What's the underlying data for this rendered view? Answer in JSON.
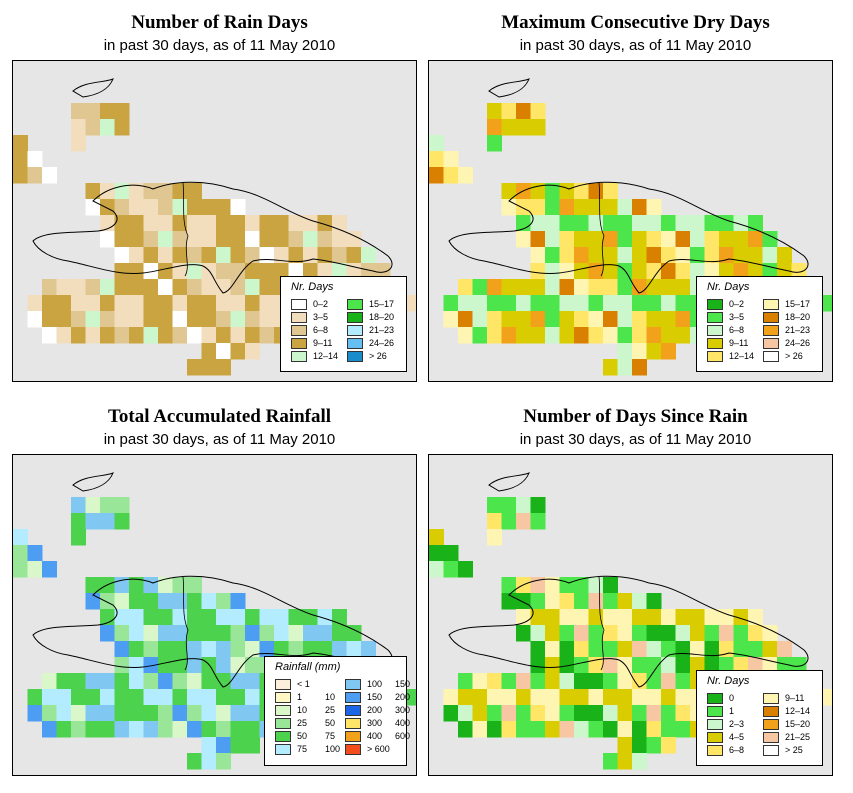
{
  "panels": [
    {
      "title": "Number of Rain Days",
      "subtitle": "in past 30 days, as of  11 May 2010",
      "legend": {
        "title": "Nr. Days",
        "items": [
          {
            "label": "0–2",
            "color": "#ffffff"
          },
          {
            "label": "3–5",
            "color": "#f2ddbc"
          },
          {
            "label": "6–8",
            "color": "#e0c690"
          },
          {
            "label": "9–11",
            "color": "#c9a441"
          },
          {
            "label": "12–14",
            "color": "#ccf7cc"
          },
          {
            "label": "15–17",
            "color": "#4ce64c"
          },
          {
            "label": "18–20",
            "color": "#19b219"
          },
          {
            "label": "21–23",
            "color": "#b3ecff"
          },
          {
            "label": "24–26",
            "color": "#66bff2"
          },
          {
            "label": "> 26",
            "color": "#1a8ccc"
          }
        ]
      }
    },
    {
      "title": "Maximum Consecutive Dry Days",
      "subtitle": "in past 30 days, as of  11 May 2010",
      "legend": {
        "title": "Nr. Days",
        "items": [
          {
            "label": "0–2",
            "color": "#19b219"
          },
          {
            "label": "3–5",
            "color": "#4ce64c"
          },
          {
            "label": "6–8",
            "color": "#ccf7cc"
          },
          {
            "label": "9–11",
            "color": "#d9cc00"
          },
          {
            "label": "12–14",
            "color": "#ffe666"
          },
          {
            "label": "15–17",
            "color": "#fff5b3"
          },
          {
            "label": "18–20",
            "color": "#d98000"
          },
          {
            "label": "21–23",
            "color": "#f2a21a"
          },
          {
            "label": "24–26",
            "color": "#f7c6a3"
          },
          {
            "label": "> 26",
            "color": "#ffffff"
          }
        ]
      }
    },
    {
      "title": "Total Accumulated Rainfall",
      "subtitle": "in past 30 days, as of  11 May 2010",
      "legend": {
        "title": "Rainfall (mm)",
        "items": [
          {
            "label": "< 1",
            "label2": "",
            "color": "#fbeedb"
          },
          {
            "label": "1",
            "label2": "10",
            "color": "#fff7c4"
          },
          {
            "label": "10",
            "label2": "25",
            "color": "#d9f7c9"
          },
          {
            "label": "25",
            "label2": "50",
            "color": "#99e699"
          },
          {
            "label": "50",
            "label2": "75",
            "color": "#4cd24c"
          },
          {
            "label": "75",
            "label2": "100",
            "color": "#b3ecff"
          },
          {
            "label": "100",
            "label2": "150",
            "color": "#80c8f2"
          },
          {
            "label": "150",
            "label2": "200",
            "color": "#4d9ef2"
          },
          {
            "label": "200",
            "label2": "300",
            "color": "#1a66e6"
          },
          {
            "label": "300",
            "label2": "400",
            "color": "#ffe666"
          },
          {
            "label": "400",
            "label2": "600",
            "color": "#f2a21a"
          },
          {
            "label": "> 600",
            "label2": "",
            "color": "#f24d1a"
          }
        ]
      }
    },
    {
      "title": "Number of Days Since Rain",
      "subtitle": "in past 30 days, as of  11 May 2010",
      "legend": {
        "title": "Nr. Days",
        "items": [
          {
            "label": "0",
            "color": "#19b219"
          },
          {
            "label": "1",
            "color": "#4ce64c"
          },
          {
            "label": "2–3",
            "color": "#ccf7cc"
          },
          {
            "label": "4–5",
            "color": "#d9cc00"
          },
          {
            "label": "6–8",
            "color": "#ffe666"
          },
          {
            "label": "9–11",
            "color": "#fff5b3"
          },
          {
            "label": "12–14",
            "color": "#d98000"
          },
          {
            "label": "15–20",
            "color": "#f2a21a"
          },
          {
            "label": "21–25",
            "color": "#f7c6a3"
          },
          {
            "label": "> 25",
            "color": "#ffffff"
          }
        ]
      }
    }
  ]
}
